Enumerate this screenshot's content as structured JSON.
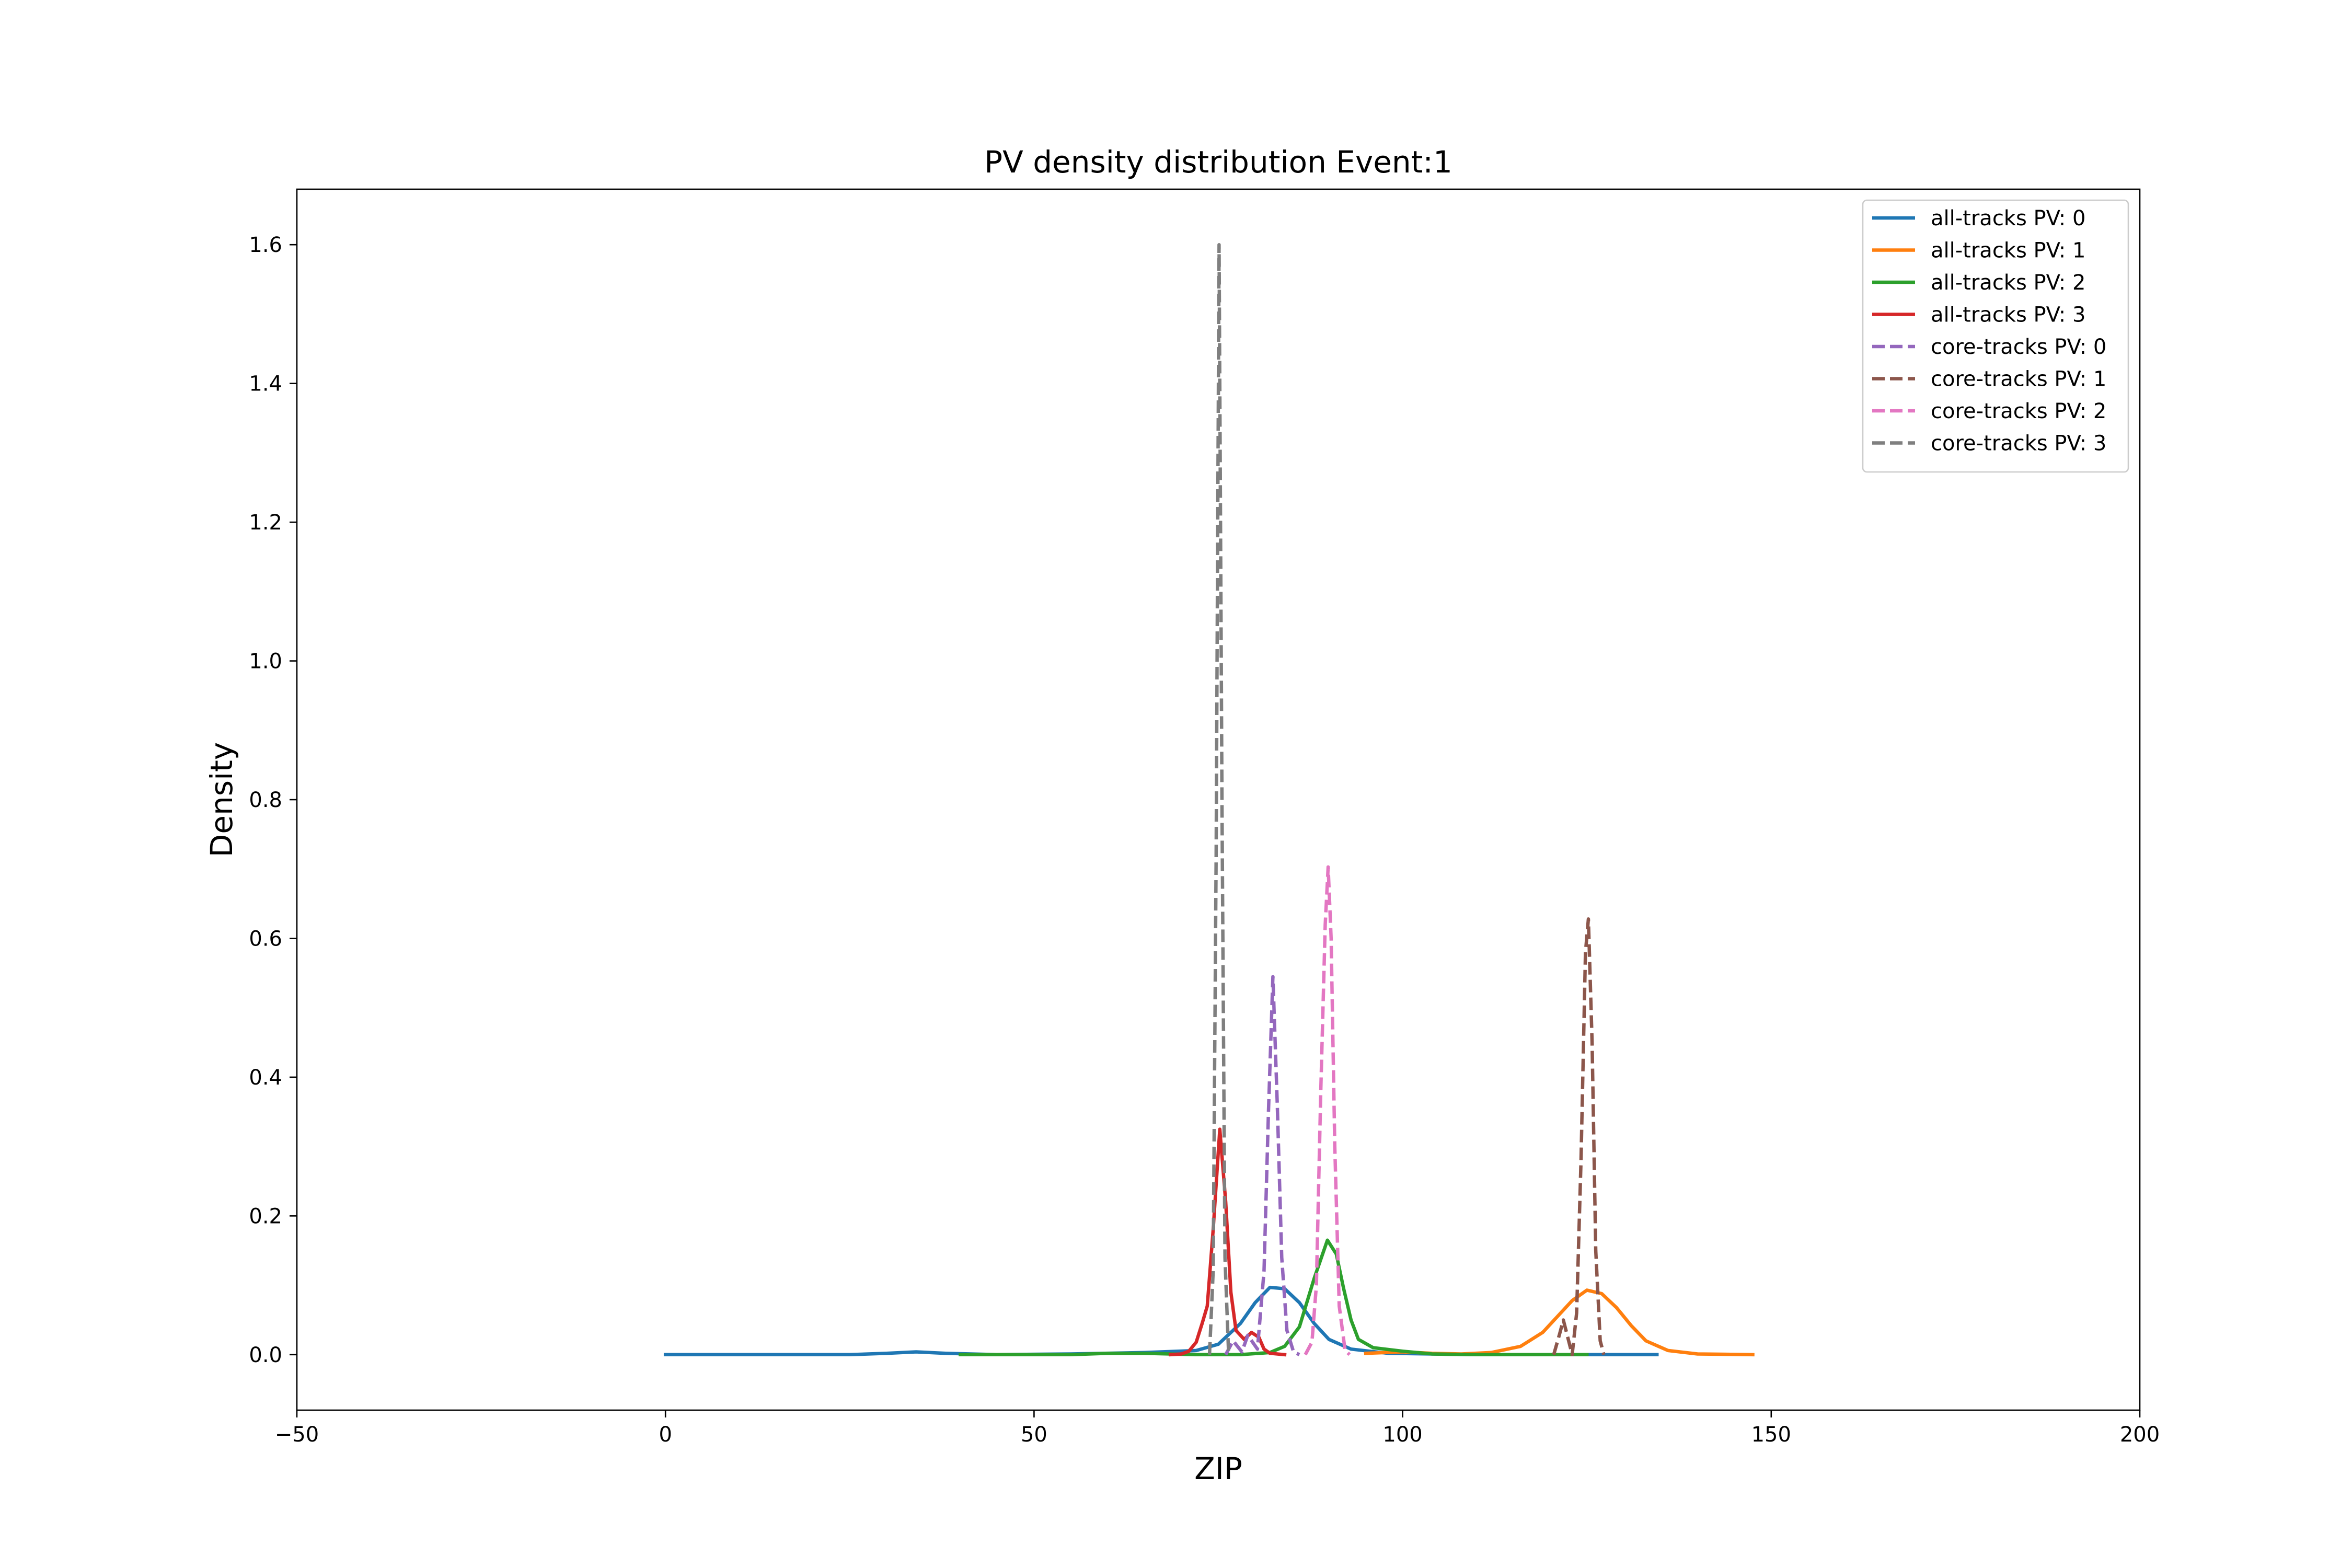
{
  "chart_data": {
    "type": "line",
    "title": "PV density distribution Event:1",
    "xlabel": "ZIP",
    "ylabel": "Density",
    "xlim": [
      -50,
      200
    ],
    "ylim": [
      -0.08,
      1.68
    ],
    "xticks": [
      -50,
      0,
      50,
      100,
      150,
      200
    ],
    "yticks": [
      0.0,
      0.2,
      0.4,
      0.6,
      0.8,
      1.0,
      1.2,
      1.4,
      1.6
    ],
    "xtick_labels": [
      "−50",
      "0",
      "50",
      "100",
      "150",
      "200"
    ],
    "ytick_labels": [
      "0.0",
      "0.2",
      "0.4",
      "0.6",
      "0.8",
      "1.0",
      "1.2",
      "1.4",
      "1.6"
    ],
    "grid": false,
    "legend_position": "top-right",
    "series": [
      {
        "name": "all-tracks PV: 0",
        "color": "#1f77b4",
        "dash": "solid",
        "points": [
          [
            0,
            0.0
          ],
          [
            25,
            0.0
          ],
          [
            30,
            0.002
          ],
          [
            34,
            0.004
          ],
          [
            38,
            0.002
          ],
          [
            45,
            0.0
          ],
          [
            55,
            0.001
          ],
          [
            65,
            0.003
          ],
          [
            72,
            0.006
          ],
          [
            75,
            0.015
          ],
          [
            78,
            0.045
          ],
          [
            80,
            0.075
          ],
          [
            82,
            0.097
          ],
          [
            84,
            0.095
          ],
          [
            86,
            0.075
          ],
          [
            88,
            0.045
          ],
          [
            90,
            0.022
          ],
          [
            93,
            0.008
          ],
          [
            98,
            0.002
          ],
          [
            110,
            0.0
          ],
          [
            134.5,
            0.0
          ]
        ]
      },
      {
        "name": "all-tracks PV: 1",
        "color": "#ff7f0e",
        "dash": "solid",
        "points": [
          [
            95,
            0.002
          ],
          [
            100,
            0.004
          ],
          [
            104,
            0.002
          ],
          [
            108,
            0.001
          ],
          [
            112,
            0.003
          ],
          [
            116,
            0.012
          ],
          [
            119,
            0.032
          ],
          [
            121,
            0.055
          ],
          [
            123,
            0.078
          ],
          [
            125,
            0.093
          ],
          [
            127,
            0.088
          ],
          [
            129,
            0.068
          ],
          [
            131,
            0.042
          ],
          [
            133,
            0.02
          ],
          [
            136,
            0.006
          ],
          [
            140,
            0.001
          ],
          [
            147.5,
            0.0
          ]
        ]
      },
      {
        "name": "all-tracks PV: 2",
        "color": "#2ca02c",
        "dash": "solid",
        "points": [
          [
            40,
            0.0
          ],
          [
            55,
            0.0
          ],
          [
            60,
            0.002
          ],
          [
            65,
            0.002
          ],
          [
            72,
            0.0
          ],
          [
            78,
            0.0
          ],
          [
            82,
            0.003
          ],
          [
            84,
            0.012
          ],
          [
            86,
            0.04
          ],
          [
            88,
            0.11
          ],
          [
            89.8,
            0.165
          ],
          [
            91,
            0.145
          ],
          [
            92,
            0.095
          ],
          [
            93,
            0.05
          ],
          [
            94,
            0.022
          ],
          [
            96,
            0.01
          ],
          [
            100,
            0.005
          ],
          [
            104,
            0.001
          ],
          [
            110,
            0.0
          ],
          [
            125,
            0.0
          ]
        ]
      },
      {
        "name": "all-tracks PV: 3",
        "color": "#d62728",
        "dash": "solid",
        "points": [
          [
            68.5,
            0.0
          ],
          [
            70,
            0.001
          ],
          [
            71,
            0.005
          ],
          [
            72,
            0.018
          ],
          [
            72.8,
            0.045
          ],
          [
            73.5,
            0.07
          ],
          [
            74.3,
            0.18
          ],
          [
            75.2,
            0.325
          ],
          [
            76,
            0.22
          ],
          [
            76.7,
            0.09
          ],
          [
            77.4,
            0.035
          ],
          [
            78.5,
            0.022
          ],
          [
            79.5,
            0.032
          ],
          [
            80.5,
            0.025
          ],
          [
            81.2,
            0.008
          ],
          [
            82,
            0.002
          ],
          [
            84,
            0.0
          ]
        ]
      },
      {
        "name": "core-tracks PV: 0",
        "color": "#9467bd",
        "dash": "dashed",
        "points": [
          [
            76,
            0.0
          ],
          [
            77,
            0.02
          ],
          [
            78.2,
            0.004
          ],
          [
            79,
            0.028
          ],
          [
            80.3,
            0.008
          ],
          [
            81.2,
            0.12
          ],
          [
            81.8,
            0.35
          ],
          [
            82.4,
            0.545
          ],
          [
            83,
            0.36
          ],
          [
            83.6,
            0.14
          ],
          [
            84.3,
            0.035
          ],
          [
            85.2,
            0.004
          ],
          [
            86,
            0.0
          ]
        ]
      },
      {
        "name": "core-tracks PV: 1",
        "color": "#8c564b",
        "dash": "dashed",
        "points": [
          [
            120.5,
            0.0
          ],
          [
            121.3,
            0.03
          ],
          [
            121.8,
            0.05
          ],
          [
            122.4,
            0.025
          ],
          [
            123,
            0.0
          ],
          [
            123.6,
            0.06
          ],
          [
            124.2,
            0.28
          ],
          [
            124.8,
            0.58
          ],
          [
            125.2,
            0.628
          ],
          [
            125.7,
            0.45
          ],
          [
            126.2,
            0.15
          ],
          [
            126.8,
            0.02
          ],
          [
            127.3,
            0.0
          ]
        ]
      },
      {
        "name": "core-tracks PV: 2",
        "color": "#e377c2",
        "dash": "dashed",
        "points": [
          [
            86.8,
            0.0
          ],
          [
            87.7,
            0.018
          ],
          [
            88.3,
            0.1
          ],
          [
            88.9,
            0.38
          ],
          [
            89.5,
            0.62
          ],
          [
            89.9,
            0.703
          ],
          [
            90.3,
            0.6
          ],
          [
            90.8,
            0.3
          ],
          [
            91.4,
            0.07
          ],
          [
            92.2,
            0.006
          ],
          [
            92.8,
            0.0
          ]
        ]
      },
      {
        "name": "core-tracks PV: 3",
        "color": "#7f7f7f",
        "dash": "dashed",
        "points": [
          [
            73.8,
            0.0
          ],
          [
            74.3,
            0.12
          ],
          [
            74.7,
            0.72
          ],
          [
            75.1,
            1.6
          ],
          [
            75.5,
            0.78
          ],
          [
            75.9,
            0.14
          ],
          [
            76.4,
            0.0
          ]
        ]
      }
    ]
  }
}
